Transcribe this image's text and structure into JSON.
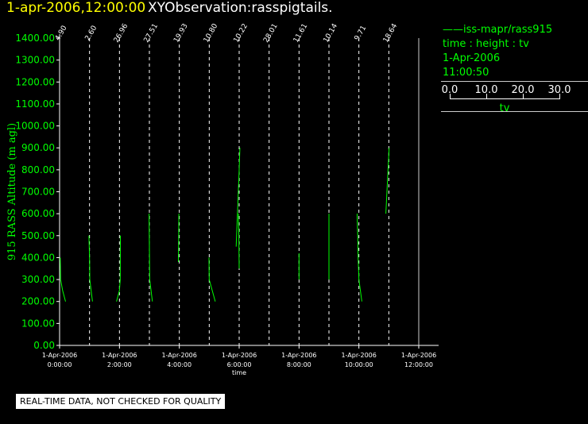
{
  "header": {
    "timestamp": "1-apr-2006,12:00:00",
    "title": "XYObservation:rasspigtails."
  },
  "legend": {
    "line1": "——iss-mapr/rass915",
    "line2": "time : height : tv",
    "line3": "1-Apr-2006",
    "line4": "11:00:50",
    "scale_ticks": [
      "0.0",
      "10.0",
      "20.0",
      "30.0"
    ],
    "scale_title": "tv"
  },
  "disclaimer": "REAL-TIME DATA, NOT CHECKED FOR QUALITY",
  "colors": {
    "axis": "#ffffff",
    "data": "#00ff00",
    "header_stamp": "#ffff00",
    "background": "#000000"
  },
  "chart_data": {
    "type": "line",
    "xlabel": "time",
    "ylabel": "915 RASS Altitude (m agl)",
    "ylim": [
      0,
      1400
    ],
    "xlim_hours": [
      0,
      12
    ],
    "y_ticks": [
      "0.00",
      "100.00",
      "200.00",
      "300.00",
      "400.00",
      "500.00",
      "600.00",
      "700.00",
      "800.00",
      "900.00",
      "1000.00",
      "1100.00",
      "1200.00",
      "1300.00",
      "1400.00"
    ],
    "x_ticks": [
      {
        "date": "1-Apr-2006",
        "time": "0:00:00",
        "hour": 0
      },
      {
        "date": "1-Apr-2006",
        "time": "2:00:00",
        "hour": 2
      },
      {
        "date": "1-Apr-2006",
        "time": "4:00:00",
        "hour": 4
      },
      {
        "date": "1-Apr-2006",
        "time": "6:00:00",
        "hour": 6
      },
      {
        "date": "1-Apr-2006",
        "time": "8:00:00",
        "hour": 8
      },
      {
        "date": "1-Apr-2006",
        "time": "10:00:00",
        "hour": 10
      },
      {
        "date": "1-Apr-2006",
        "time": "12:00:00",
        "hour": 12
      }
    ],
    "profiles": [
      {
        "hour": 0.0,
        "label": "4.90",
        "points": [
          [
            0.2,
            400
          ],
          [
            0.35,
            300
          ],
          [
            1.0,
            250
          ],
          [
            2.0,
            200
          ]
        ]
      },
      {
        "hour": 1.0,
        "label": "2.60",
        "points": [
          [
            -0.2,
            500
          ],
          [
            0.0,
            400
          ],
          [
            0.1,
            300
          ],
          [
            1.0,
            200
          ]
        ]
      },
      {
        "hour": 2.0,
        "label": "26.96",
        "points": [
          [
            -1.0,
            200
          ],
          [
            0.0,
            250
          ],
          [
            0.25,
            300
          ],
          [
            0.3,
            500
          ]
        ]
      },
      {
        "hour": 3.0,
        "label": "27.51",
        "points": [
          [
            -0.1,
            600
          ],
          [
            0.0,
            450
          ],
          [
            0.1,
            300
          ],
          [
            1.0,
            200
          ]
        ]
      },
      {
        "hour": 4.0,
        "label": "19.93",
        "points": [
          [
            -0.3,
            380
          ],
          [
            -0.2,
            500
          ],
          [
            -0.15,
            600
          ]
        ]
      },
      {
        "hour": 5.0,
        "label": "10.80",
        "points": [
          [
            -0.1,
            400
          ],
          [
            0.0,
            300
          ],
          [
            1.0,
            250
          ],
          [
            2.0,
            200
          ]
        ]
      },
      {
        "hour": 6.0,
        "label": "10.22",
        "points": [
          [
            -1.0,
            450
          ],
          [
            0.0,
            800
          ],
          [
            0.25,
            900
          ]
        ]
      },
      {
        "hour": 6.0,
        "label": "",
        "points": [
          [
            -0.25,
            600
          ],
          [
            -0.1,
            500
          ],
          [
            0.0,
            350
          ]
        ]
      },
      {
        "hour": 7.0,
        "label": "28.01",
        "points": []
      },
      {
        "hour": 8.0,
        "label": "11.61",
        "points": [
          [
            0.0,
            420
          ],
          [
            0.0,
            300
          ]
        ]
      },
      {
        "hour": 9.0,
        "label": "10.14",
        "points": [
          [
            0.0,
            600
          ],
          [
            0.0,
            300
          ]
        ]
      },
      {
        "hour": 10.0,
        "label": "9.71",
        "points": [
          [
            -0.6,
            600
          ],
          [
            -0.4,
            500
          ],
          [
            -0.25,
            400
          ],
          [
            0.0,
            300
          ],
          [
            1.0,
            200
          ]
        ]
      },
      {
        "hour": 11.0,
        "label": "18.64",
        "points": [
          [
            -1.0,
            600
          ],
          [
            0.1,
            900
          ]
        ]
      }
    ]
  }
}
